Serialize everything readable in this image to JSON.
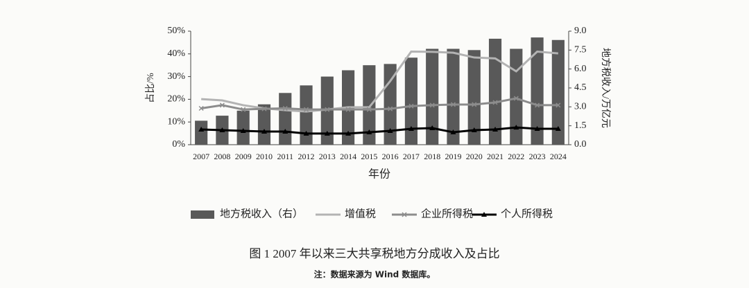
{
  "chart_data": {
    "type": "bar_line",
    "title": "图 1   2007 年以来三大共享税地方分成收入及占比",
    "note": "注：数据来源为 Wind 数据库。",
    "x_label": "年份",
    "y_label": "占比/%",
    "y2_label": "地方税收入/万亿元",
    "categories": [
      "2007",
      "2008",
      "2009",
      "2010",
      "2011",
      "2012",
      "2013",
      "2014",
      "2015",
      "2016",
      "2017",
      "2018",
      "2019",
      "2020",
      "2021",
      "2022",
      "2023",
      "2024"
    ],
    "ylim": [
      0,
      50
    ],
    "yticks": [
      {
        "value": 0,
        "label": "0%"
      },
      {
        "value": 10,
        "label": "10%"
      },
      {
        "value": 20,
        "label": "20%"
      },
      {
        "value": 30,
        "label": "30%"
      },
      {
        "value": 40,
        "label": "40%"
      },
      {
        "value": 50,
        "label": "50%"
      }
    ],
    "y2lim": [
      0,
      9
    ],
    "y2ticks": [
      {
        "value": 0,
        "label": "0.0"
      },
      1.5,
      {
        "value": 3,
        "label": "3.0"
      },
      4.5,
      {
        "value": 6,
        "label": "6.0"
      },
      7.5,
      {
        "value": 9,
        "label": "9.0"
      }
    ],
    "series": [
      {
        "name": "地方税收入（右）",
        "type": "bar",
        "axis": "y2",
        "color": "#595959",
        "values": [
          1.9,
          2.3,
          2.7,
          3.2,
          4.1,
          4.7,
          5.4,
          5.9,
          6.3,
          6.4,
          6.9,
          7.6,
          7.6,
          7.5,
          8.4,
          7.6,
          8.5,
          8.3
        ]
      },
      {
        "name": "增值税",
        "type": "line",
        "color": "#b3b3b3",
        "marker": "none",
        "values": [
          20.1,
          19.5,
          17.4,
          16,
          15.2,
          14.6,
          15.5,
          16.5,
          16.5,
          28,
          41,
          40.9,
          40.5,
          38.4,
          38,
          32.3,
          41,
          40.2
        ]
      },
      {
        "name": "企业所得税",
        "type": "line",
        "color": "#8c8c8c",
        "marker": "x",
        "values": [
          16,
          17.4,
          15.5,
          15.8,
          16,
          15.5,
          15.5,
          15.5,
          15.5,
          15.8,
          17,
          17.4,
          17.7,
          17.7,
          18.6,
          20.4,
          17.4,
          17.4
        ]
      },
      {
        "name": "个人所得税",
        "type": "line",
        "color": "#000000",
        "marker": "triangle",
        "values": [
          6.7,
          6.4,
          6.1,
          5.8,
          5.8,
          4.9,
          4.9,
          4.9,
          5.5,
          6.1,
          7,
          7.3,
          5.5,
          6.4,
          6.7,
          7.6,
          7,
          7
        ]
      }
    ]
  }
}
